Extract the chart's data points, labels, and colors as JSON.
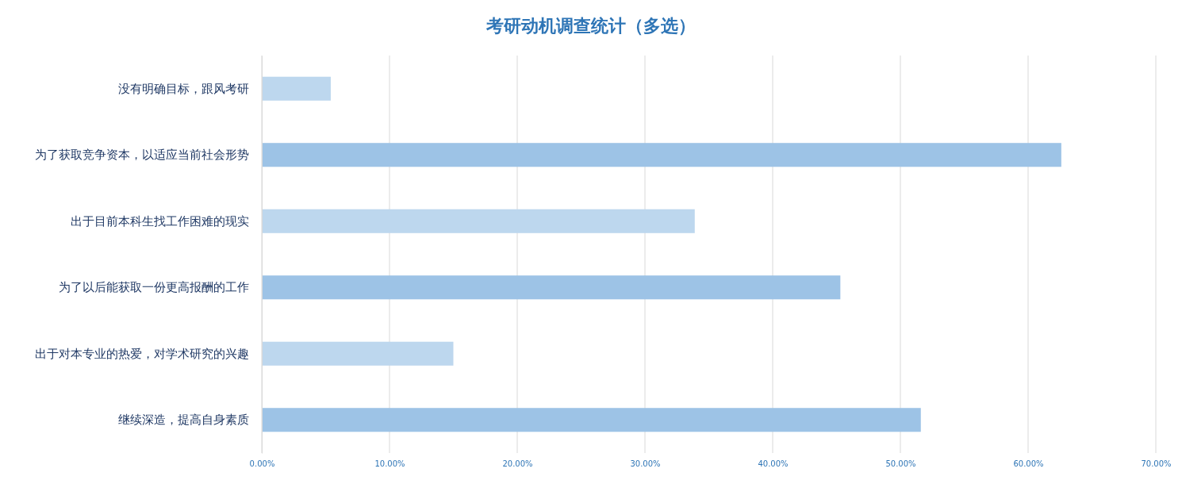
{
  "chart_data": {
    "type": "bar",
    "orientation": "horizontal",
    "title": "考研动机调查统计（多选）",
    "categories": [
      "没有明确目标，跟风考研",
      "为了获取竞争资本，以适应当前社会形势",
      "出于目前本科生找工作困难的现实",
      "为了以后能获取一份更高报酬的工作",
      "出于对本专业的热爱，对学术研究的兴趣",
      "继续深造，提高自身素质"
    ],
    "values": [
      5.4,
      62.6,
      33.9,
      45.3,
      15.0,
      51.6
    ],
    "colors": [
      "#bdd7ee",
      "#9dc3e6",
      "#bdd7ee",
      "#9dc3e6",
      "#bdd7ee",
      "#9dc3e6"
    ],
    "xlim": [
      0,
      70
    ],
    "xticks": [
      {
        "value": 0,
        "label": "0.00%"
      },
      {
        "value": 10,
        "label": "10.00%"
      },
      {
        "value": 20,
        "label": "20.00%"
      },
      {
        "value": 30,
        "label": "30.00%"
      },
      {
        "value": 40,
        "label": "40.00%"
      },
      {
        "value": 50,
        "label": "50.00%"
      },
      {
        "value": 60,
        "label": "60.00%"
      },
      {
        "value": 70,
        "label": "70.00%"
      }
    ],
    "grid": "x"
  }
}
